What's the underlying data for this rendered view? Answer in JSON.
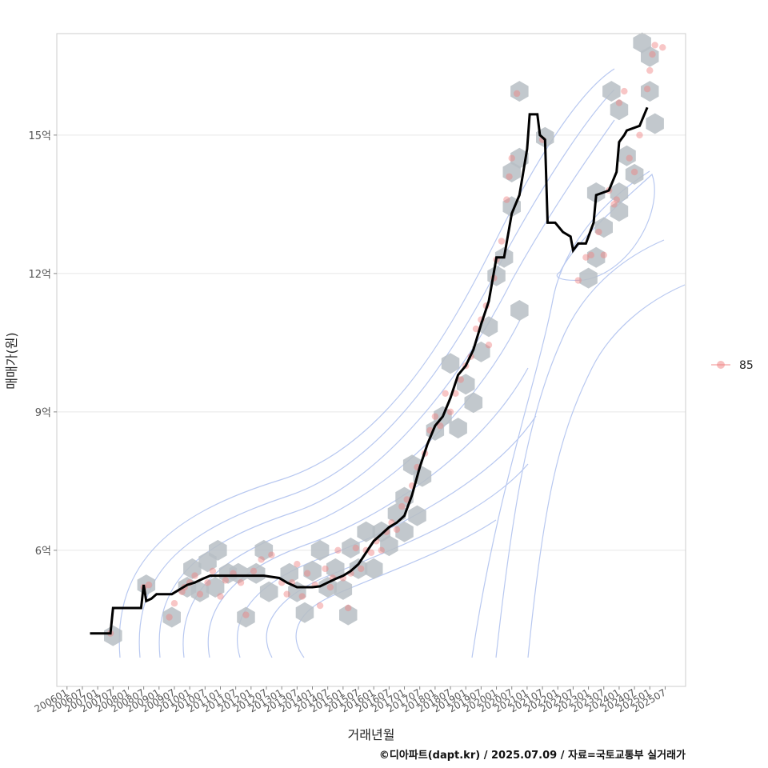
{
  "chart_data": {
    "type": "scatter",
    "xlabel": "거래년월",
    "ylabel": "매매가(원)",
    "caption": "©디아파트(dapt.kr) / 2025.07.09 / 자료=국토교통부 실거래가",
    "x_range": [
      "2005-09",
      "2026-03"
    ],
    "y_range": [
      3.05,
      17.2
    ],
    "y_ticks": [
      {
        "value": 6,
        "label": "6억"
      },
      {
        "value": 9,
        "label": "9억"
      },
      {
        "value": 12,
        "label": "12억"
      },
      {
        "value": 15,
        "label": "15억"
      }
    ],
    "x_ticks": [
      "200601",
      "200607",
      "200701",
      "200707",
      "200801",
      "200807",
      "200901",
      "200907",
      "201001",
      "201007",
      "201101",
      "201107",
      "201201",
      "201207",
      "201301",
      "201307",
      "201401",
      "201407",
      "201501",
      "201507",
      "201601",
      "201607",
      "201701",
      "201707",
      "201801",
      "201807",
      "201901",
      "201907",
      "202001",
      "202007",
      "202101",
      "202107",
      "202201",
      "202207",
      "202301",
      "202307",
      "202401",
      "202407",
      "202501",
      "202507"
    ],
    "grid": true,
    "legend": {
      "position": "right",
      "entries": [
        {
          "label": "85",
          "color": "#f08080"
        }
      ]
    },
    "colors": {
      "line": "#000000",
      "points": "#f08080",
      "hex": "#b7bec4",
      "contour": "#b8c8f0",
      "grid": "#e6e6e6",
      "panel_border": "#cccccc"
    },
    "trend_line": [
      [
        "2006-10",
        4.2
      ],
      [
        "2007-06",
        4.2
      ],
      [
        "2007-07",
        4.75
      ],
      [
        "2008-06",
        4.75
      ],
      [
        "2008-07",
        5.25
      ],
      [
        "2008-08",
        4.9
      ],
      [
        "2008-10",
        4.95
      ],
      [
        "2008-12",
        5.05
      ],
      [
        "2009-06",
        5.05
      ],
      [
        "2009-09",
        5.15
      ],
      [
        "2009-12",
        5.25
      ],
      [
        "2010-03",
        5.3
      ],
      [
        "2010-06",
        5.38
      ],
      [
        "2010-09",
        5.45
      ],
      [
        "2011-06",
        5.45
      ],
      [
        "2011-12",
        5.45
      ],
      [
        "2012-06",
        5.45
      ],
      [
        "2012-12",
        5.4
      ],
      [
        "2013-03",
        5.3
      ],
      [
        "2013-07",
        5.2
      ],
      [
        "2014-01",
        5.2
      ],
      [
        "2014-04",
        5.22
      ],
      [
        "2014-07",
        5.3
      ],
      [
        "2014-10",
        5.38
      ],
      [
        "2015-01",
        5.45
      ],
      [
        "2015-04",
        5.55
      ],
      [
        "2015-07",
        5.7
      ],
      [
        "2015-10",
        5.95
      ],
      [
        "2016-01",
        6.2
      ],
      [
        "2016-04",
        6.35
      ],
      [
        "2016-07",
        6.5
      ],
      [
        "2016-10",
        6.6
      ],
      [
        "2017-01",
        6.75
      ],
      [
        "2017-04",
        7.2
      ],
      [
        "2017-07",
        7.8
      ],
      [
        "2017-10",
        8.3
      ],
      [
        "2018-01",
        8.7
      ],
      [
        "2018-04",
        8.9
      ],
      [
        "2018-07",
        9.3
      ],
      [
        "2018-10",
        9.8
      ],
      [
        "2019-01",
        10.0
      ],
      [
        "2019-04",
        10.35
      ],
      [
        "2019-07",
        10.9
      ],
      [
        "2019-10",
        11.4
      ],
      [
        "2020-01",
        12.35
      ],
      [
        "2020-04",
        12.35
      ],
      [
        "2020-07",
        13.3
      ],
      [
        "2020-10",
        13.7
      ],
      [
        "2021-01",
        14.7
      ],
      [
        "2021-02",
        15.45
      ],
      [
        "2021-05",
        15.45
      ],
      [
        "2021-06",
        15.0
      ],
      [
        "2021-08",
        14.9
      ],
      [
        "2021-09",
        13.1
      ],
      [
        "2021-12",
        13.1
      ],
      [
        "2022-03",
        12.9
      ],
      [
        "2022-06",
        12.8
      ],
      [
        "2022-07",
        12.5
      ],
      [
        "2022-09",
        12.65
      ],
      [
        "2022-12",
        12.65
      ],
      [
        "2023-03",
        13.1
      ],
      [
        "2023-04",
        13.7
      ],
      [
        "2023-09",
        13.8
      ],
      [
        "2023-12",
        14.2
      ],
      [
        "2024-01",
        14.85
      ],
      [
        "2024-03",
        15.0
      ],
      [
        "2024-04",
        15.1
      ],
      [
        "2024-09",
        15.2
      ],
      [
        "2024-12",
        15.6
      ]
    ],
    "points": [
      [
        "2007-06",
        4.2
      ],
      [
        "2008-07",
        5.2
      ],
      [
        "2008-09",
        5.25
      ],
      [
        "2009-05",
        4.55
      ],
      [
        "2009-07",
        4.85
      ],
      [
        "2009-10",
        5.1
      ],
      [
        "2009-11",
        5.2
      ],
      [
        "2010-01",
        5.3
      ],
      [
        "2010-03",
        5.45
      ],
      [
        "2010-05",
        5.05
      ],
      [
        "2010-08",
        5.3
      ],
      [
        "2010-10",
        5.55
      ],
      [
        "2011-01",
        5.0
      ],
      [
        "2011-03",
        5.35
      ],
      [
        "2011-06",
        5.5
      ],
      [
        "2011-09",
        5.3
      ],
      [
        "2011-11",
        4.6
      ],
      [
        "2012-02",
        5.55
      ],
      [
        "2012-05",
        5.8
      ],
      [
        "2012-09",
        5.9
      ],
      [
        "2013-01",
        5.3
      ],
      [
        "2013-03",
        5.05
      ],
      [
        "2013-05",
        5.3
      ],
      [
        "2013-07",
        5.7
      ],
      [
        "2013-09",
        5.0
      ],
      [
        "2013-11",
        5.5
      ],
      [
        "2014-02",
        5.25
      ],
      [
        "2014-04",
        4.8
      ],
      [
        "2014-06",
        5.6
      ],
      [
        "2014-08",
        5.2
      ],
      [
        "2014-09",
        5.4
      ],
      [
        "2014-11",
        6.0
      ],
      [
        "2015-01",
        5.4
      ],
      [
        "2015-03",
        4.75
      ],
      [
        "2015-04",
        5.5
      ],
      [
        "2015-06",
        6.05
      ],
      [
        "2015-08",
        5.6
      ],
      [
        "2015-10",
        6.0
      ],
      [
        "2015-12",
        5.95
      ],
      [
        "2016-02",
        6.2
      ],
      [
        "2016-04",
        6.0
      ],
      [
        "2016-06",
        6.4
      ],
      [
        "2016-08",
        6.6
      ],
      [
        "2016-10",
        6.45
      ],
      [
        "2016-12",
        6.95
      ],
      [
        "2017-02",
        7.1
      ],
      [
        "2017-04",
        7.4
      ],
      [
        "2017-06",
        7.8
      ],
      [
        "2017-09",
        8.1
      ],
      [
        "2017-11",
        8.6
      ],
      [
        "2018-01",
        8.9
      ],
      [
        "2018-03",
        8.7
      ],
      [
        "2018-05",
        9.4
      ],
      [
        "2018-07",
        9.0
      ],
      [
        "2018-09",
        9.4
      ],
      [
        "2018-11",
        9.7
      ],
      [
        "2019-01",
        10.0
      ],
      [
        "2019-03",
        10.2
      ],
      [
        "2019-05",
        10.8
      ],
      [
        "2019-07",
        11.0
      ],
      [
        "2019-09",
        11.3
      ],
      [
        "2019-10",
        10.45
      ],
      [
        "2019-12",
        11.9
      ],
      [
        "2020-01",
        12.3
      ],
      [
        "2020-03",
        12.7
      ],
      [
        "2020-05",
        13.6
      ],
      [
        "2020-06",
        14.1
      ],
      [
        "2020-07",
        14.5
      ],
      [
        "2020-09",
        15.9
      ],
      [
        "2021-07",
        14.9
      ],
      [
        "2022-09",
        11.85
      ],
      [
        "2022-12",
        12.35
      ],
      [
        "2023-02",
        12.4
      ],
      [
        "2023-05",
        12.9
      ],
      [
        "2023-07",
        12.4
      ],
      [
        "2023-09",
        13.8
      ],
      [
        "2023-11",
        13.5
      ],
      [
        "2023-12",
        13.6
      ],
      [
        "2024-01",
        15.7
      ],
      [
        "2024-03",
        15.95
      ],
      [
        "2024-05",
        14.5
      ],
      [
        "2024-07",
        14.2
      ],
      [
        "2024-09",
        15.0
      ],
      [
        "2024-12",
        16.0
      ],
      [
        "2025-01",
        16.4
      ],
      [
        "2025-02",
        16.75
      ],
      [
        "2025-03",
        16.95
      ],
      [
        "2025-06",
        16.9
      ]
    ],
    "hexbins": [
      [
        "2007-07",
        4.15
      ],
      [
        "2008-08",
        5.25
      ],
      [
        "2009-06",
        4.55
      ],
      [
        "2009-12",
        5.2
      ],
      [
        "2010-02",
        5.6
      ],
      [
        "2010-05",
        5.1
      ],
      [
        "2010-08",
        5.75
      ],
      [
        "2010-11",
        5.2
      ],
      [
        "2010-12",
        6.0
      ],
      [
        "2011-04",
        5.5
      ],
      [
        "2011-08",
        5.5
      ],
      [
        "2011-11",
        4.55
      ],
      [
        "2012-03",
        5.5
      ],
      [
        "2012-06",
        6.0
      ],
      [
        "2012-08",
        5.1
      ],
      [
        "2013-04",
        5.5
      ],
      [
        "2013-07",
        5.1
      ],
      [
        "2013-10",
        4.65
      ],
      [
        "2014-01",
        5.55
      ],
      [
        "2014-04",
        6.0
      ],
      [
        "2014-07",
        5.2
      ],
      [
        "2014-10",
        5.6
      ],
      [
        "2015-01",
        5.15
      ],
      [
        "2015-03",
        4.6
      ],
      [
        "2015-04",
        6.05
      ],
      [
        "2015-07",
        5.6
      ],
      [
        "2015-10",
        6.4
      ],
      [
        "2016-01",
        5.6
      ],
      [
        "2016-04",
        6.4
      ],
      [
        "2016-07",
        6.1
      ],
      [
        "2016-10",
        6.8
      ],
      [
        "2017-01",
        7.15
      ],
      [
        "2017-01",
        6.4
      ],
      [
        "2017-04",
        7.85
      ],
      [
        "2017-06",
        6.75
      ],
      [
        "2017-08",
        7.6
      ],
      [
        "2018-01",
        8.6
      ],
      [
        "2018-04",
        8.9
      ],
      [
        "2018-07",
        10.05
      ],
      [
        "2018-10",
        8.65
      ],
      [
        "2019-01",
        9.6
      ],
      [
        "2019-04",
        9.2
      ],
      [
        "2019-07",
        10.3
      ],
      [
        "2019-10",
        10.85
      ],
      [
        "2020-01",
        11.95
      ],
      [
        "2020-04",
        12.35
      ],
      [
        "2020-07",
        13.45
      ],
      [
        "2020-07",
        14.2
      ],
      [
        "2020-10",
        14.5
      ],
      [
        "2020-10",
        11.2
      ],
      [
        "2020-10",
        15.95
      ],
      [
        "2021-08",
        14.95
      ],
      [
        "2023-01",
        11.9
      ],
      [
        "2023-04",
        12.35
      ],
      [
        "2023-04",
        13.75
      ],
      [
        "2023-07",
        13.0
      ],
      [
        "2023-10",
        15.95
      ],
      [
        "2024-01",
        15.55
      ],
      [
        "2024-01",
        13.75
      ],
      [
        "2024-01",
        13.35
      ],
      [
        "2024-04",
        14.55
      ],
      [
        "2024-07",
        14.15
      ],
      [
        "2024-10",
        17.0
      ],
      [
        "2025-01",
        16.7
      ],
      [
        "2025-01",
        15.95
      ],
      [
        "2025-03",
        15.25
      ]
    ]
  }
}
